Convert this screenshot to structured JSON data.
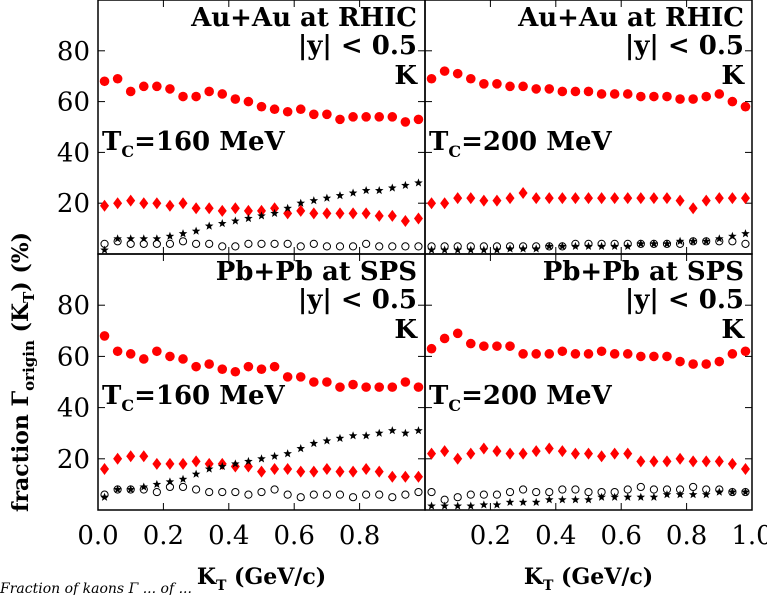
{
  "y_axis_label": "fraction Γ",
  "y_axis_label_sub": "origin",
  "y_axis_label_tail": " (K",
  "y_axis_label_tail_sub": "T",
  "y_axis_label_end": ") (%)",
  "caption_fragment": "Fraction of kaons Γ  ...  of ...",
  "chart_data": [
    {
      "type": "scatter",
      "panel": "top-left",
      "text_lines": [
        "Au+Au at RHIC",
        "|y| < 0.5",
        "K"
      ],
      "tc_label": "T",
      "tc_sub": "C",
      "tc_value": "=160  MeV",
      "xlim": [
        0.0,
        1.0
      ],
      "ylim": [
        0,
        100
      ],
      "y_ticks": [
        "20",
        "40",
        "60",
        "80"
      ],
      "x_ticks": [],
      "xlabel": "",
      "x": [
        0.02,
        0.06,
        0.1,
        0.14,
        0.18,
        0.22,
        0.26,
        0.3,
        0.34,
        0.38,
        0.42,
        0.46,
        0.5,
        0.54,
        0.58,
        0.62,
        0.66,
        0.7,
        0.74,
        0.78,
        0.82,
        0.86,
        0.9,
        0.94,
        0.98
      ],
      "series": [
        {
          "marker": "circle-red",
          "values": [
            68,
            69,
            64,
            66,
            66,
            65,
            62,
            62,
            64,
            63,
            61,
            60,
            58,
            57,
            56,
            57,
            55,
            55,
            53,
            54,
            54,
            54,
            54,
            52,
            53
          ]
        },
        {
          "marker": "diamond-red",
          "values": [
            19,
            20,
            21,
            20,
            20,
            19,
            20,
            18,
            18,
            17,
            18,
            17,
            17,
            18,
            16,
            17,
            16,
            16,
            16,
            16,
            16,
            15,
            15,
            13,
            14
          ]
        },
        {
          "marker": "star-black",
          "values": [
            1,
            6,
            6,
            6,
            6,
            7,
            8,
            9,
            11,
            12,
            13,
            14,
            15,
            16,
            18,
            20,
            21,
            22,
            23,
            24,
            25,
            25,
            26,
            27,
            28
          ]
        },
        {
          "marker": "circle-open",
          "values": [
            4,
            5,
            4,
            4,
            4,
            4,
            5,
            4,
            4,
            3,
            3,
            4,
            4,
            4,
            4,
            3,
            4,
            3,
            3,
            3,
            4,
            3,
            3,
            3,
            3
          ]
        }
      ]
    },
    {
      "type": "scatter",
      "panel": "top-right",
      "text_lines": [
        "Au+Au at RHIC",
        "|y| < 0.5",
        "K"
      ],
      "tc_label": "T",
      "tc_sub": "C",
      "tc_value": "=200  MeV",
      "xlim": [
        0.0,
        1.0
      ],
      "ylim": [
        0,
        100
      ],
      "y_ticks": [],
      "x_ticks": [],
      "xlabel": "",
      "x": [
        0.02,
        0.06,
        0.1,
        0.14,
        0.18,
        0.22,
        0.26,
        0.3,
        0.34,
        0.38,
        0.42,
        0.46,
        0.5,
        0.54,
        0.58,
        0.62,
        0.66,
        0.7,
        0.74,
        0.78,
        0.82,
        0.86,
        0.9,
        0.94,
        0.98
      ],
      "series": [
        {
          "marker": "circle-red",
          "values": [
            69,
            72,
            71,
            69,
            67,
            67,
            66,
            66,
            65,
            65,
            64,
            64,
            64,
            63,
            63,
            63,
            62,
            62,
            62,
            61,
            61,
            62,
            63,
            60,
            58
          ]
        },
        {
          "marker": "diamond-red",
          "values": [
            20,
            20,
            22,
            22,
            21,
            21,
            22,
            24,
            22,
            22,
            22,
            22,
            22,
            22,
            22,
            22,
            22,
            22,
            22,
            21,
            18,
            21,
            22,
            22,
            22
          ]
        },
        {
          "marker": "star-black",
          "values": [
            1,
            1,
            1,
            1,
            1,
            1,
            2,
            2,
            2,
            3,
            3,
            3,
            3,
            3,
            3,
            3,
            4,
            4,
            4,
            5,
            5,
            5,
            6,
            7,
            8
          ]
        },
        {
          "marker": "circle-open",
          "values": [
            3,
            3,
            3,
            3,
            3,
            3,
            3,
            3,
            3,
            3,
            3,
            4,
            4,
            4,
            4,
            4,
            4,
            4,
            4,
            4,
            5,
            5,
            5,
            5,
            4
          ]
        }
      ]
    },
    {
      "type": "scatter",
      "panel": "bottom-left",
      "text_lines": [
        "Pb+Pb at SPS",
        "|y| < 0.5",
        "K"
      ],
      "tc_label": "T",
      "tc_sub": "C",
      "tc_value": "=160  MeV",
      "xlim": [
        0.0,
        1.0
      ],
      "ylim": [
        0,
        100
      ],
      "y_ticks": [
        "20",
        "40",
        "60",
        "80"
      ],
      "x_ticks": [
        "0.0",
        "0.2",
        "0.4",
        "0.6",
        "0.8"
      ],
      "xlabel_main": "K",
      "xlabel_sub": "T",
      "xlabel_rest": " (GeV/c)",
      "x": [
        0.02,
        0.06,
        0.1,
        0.14,
        0.18,
        0.22,
        0.26,
        0.3,
        0.34,
        0.38,
        0.42,
        0.46,
        0.5,
        0.54,
        0.58,
        0.62,
        0.66,
        0.7,
        0.74,
        0.78,
        0.82,
        0.86,
        0.9,
        0.94,
        0.98
      ],
      "series": [
        {
          "marker": "circle-red",
          "values": [
            68,
            62,
            61,
            59,
            62,
            60,
            59,
            56,
            57,
            55,
            54,
            56,
            55,
            56,
            52,
            52,
            50,
            50,
            48,
            49,
            48,
            48,
            48,
            50,
            48
          ]
        },
        {
          "marker": "diamond-red",
          "values": [
            16,
            20,
            21,
            21,
            18,
            18,
            18,
            19,
            18,
            18,
            17,
            17,
            15,
            16,
            16,
            15,
            15,
            16,
            15,
            15,
            16,
            15,
            13,
            13,
            13
          ]
        },
        {
          "marker": "star-black",
          "values": [
            5,
            8,
            8,
            9,
            10,
            11,
            12,
            14,
            16,
            17,
            18,
            19,
            20,
            21,
            22,
            24,
            26,
            27,
            28,
            29,
            29,
            30,
            31,
            30,
            31
          ]
        },
        {
          "marker": "circle-open",
          "values": [
            6,
            8,
            8,
            8,
            7,
            9,
            9,
            8,
            7,
            7,
            7,
            6,
            7,
            8,
            6,
            5,
            6,
            6,
            6,
            5,
            6,
            6,
            5,
            6,
            7
          ]
        }
      ]
    },
    {
      "type": "scatter",
      "panel": "bottom-right",
      "text_lines": [
        "Pb+Pb at SPS",
        "|y| < 0.5",
        "K"
      ],
      "tc_label": "T",
      "tc_sub": "C",
      "tc_value": "=200  MeV",
      "xlim": [
        0.0,
        1.0
      ],
      "ylim": [
        0,
        100
      ],
      "y_ticks": [],
      "x_ticks": [
        "0.2",
        "0.4",
        "0.6",
        "0.8",
        "1.0"
      ],
      "xlabel_main": "K",
      "xlabel_sub": "T",
      "xlabel_rest": " (GeV/c)",
      "x": [
        0.02,
        0.06,
        0.1,
        0.14,
        0.18,
        0.22,
        0.26,
        0.3,
        0.34,
        0.38,
        0.42,
        0.46,
        0.5,
        0.54,
        0.58,
        0.62,
        0.66,
        0.7,
        0.74,
        0.78,
        0.82,
        0.86,
        0.9,
        0.94,
        0.98
      ],
      "series": [
        {
          "marker": "circle-red",
          "values": [
            63,
            67,
            69,
            65,
            64,
            64,
            64,
            61,
            61,
            61,
            62,
            61,
            61,
            62,
            61,
            61,
            60,
            60,
            60,
            58,
            57,
            57,
            58,
            61,
            62
          ]
        },
        {
          "marker": "diamond-red",
          "values": [
            22,
            23,
            20,
            22,
            24,
            23,
            22,
            22,
            23,
            24,
            23,
            22,
            22,
            21,
            22,
            22,
            19,
            19,
            19,
            20,
            19,
            19,
            19,
            18,
            16
          ]
        },
        {
          "marker": "star-black",
          "values": [
            0,
            0,
            1,
            1,
            2,
            2,
            3,
            3,
            3,
            4,
            4,
            4,
            4,
            5,
            5,
            5,
            5,
            5,
            6,
            6,
            6,
            6,
            7,
            7,
            7
          ]
        },
        {
          "marker": "circle-open",
          "values": [
            7,
            4,
            5,
            6,
            6,
            6,
            7,
            8,
            7,
            7,
            8,
            8,
            7,
            7,
            7,
            8,
            9,
            8,
            8,
            8,
            9,
            8,
            8,
            7,
            7
          ]
        }
      ]
    }
  ]
}
